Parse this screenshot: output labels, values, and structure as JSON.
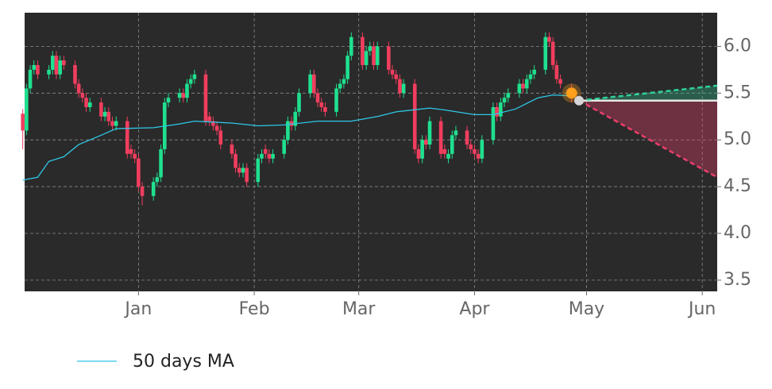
{
  "chart_data": {
    "type": "candlestick",
    "xlim": [
      0.5,
      186
    ],
    "ylim": [
      3.38,
      6.36
    ],
    "xticks": [
      {
        "value": 31,
        "label": "Jan"
      },
      {
        "value": 62,
        "label": "Feb"
      },
      {
        "value": 90,
        "label": "Mar"
      },
      {
        "value": 121,
        "label": "Apr"
      },
      {
        "value": 151,
        "label": "May"
      },
      {
        "value": 182,
        "label": "Jun"
      }
    ],
    "yticks": [
      3.5,
      {
        "value": 4,
        "label": "4.0"
      },
      4.5,
      {
        "value": 5,
        "label": "5.0"
      },
      5.5,
      {
        "value": 6,
        "label": "6.0"
      }
    ],
    "grid": true,
    "candles": {
      "up_color": "#1fe08f",
      "down_color": "#f03e5e",
      "x": [
        0,
        1,
        2,
        3,
        4,
        7,
        8,
        9,
        10,
        11,
        14,
        15,
        16,
        17,
        18,
        21,
        22,
        23,
        24,
        25,
        28,
        29,
        30,
        31,
        32,
        35,
        36,
        37,
        38,
        39,
        42,
        43,
        44,
        45,
        46,
        49,
        50,
        51,
        52,
        53,
        56,
        57,
        58,
        59,
        60,
        63,
        64,
        65,
        66,
        67,
        70,
        71,
        72,
        73,
        74,
        77,
        78,
        79,
        80,
        81,
        84,
        85,
        86,
        87,
        88,
        91,
        92,
        93,
        94,
        95,
        98,
        99,
        100,
        101,
        102,
        105,
        106,
        107,
        108,
        109,
        112,
        113,
        114,
        115,
        116,
        119,
        120,
        121,
        122,
        123,
        126,
        127,
        128,
        129,
        130,
        133,
        134,
        135,
        136,
        137,
        140,
        141,
        142,
        143,
        144,
        147
      ],
      "open": [
        5.28,
        5.1,
        5.55,
        5.75,
        5.8,
        5.7,
        5.75,
        5.9,
        5.7,
        5.85,
        5.8,
        5.6,
        5.5,
        5.45,
        5.35,
        5.4,
        5.25,
        5.3,
        5.2,
        5.15,
        5.2,
        4.9,
        4.85,
        4.8,
        4.5,
        4.4,
        4.55,
        4.6,
        4.9,
        5.4,
        5.45,
        5.5,
        5.45,
        5.6,
        5.65,
        5.7,
        5.25,
        5.2,
        5.15,
        5.1,
        4.95,
        4.85,
        4.7,
        4.65,
        4.7,
        4.55,
        4.8,
        4.9,
        4.85,
        4.8,
        4.85,
        5.0,
        5.2,
        5.15,
        5.3,
        5.5,
        5.7,
        5.5,
        5.4,
        5.35,
        5.3,
        5.55,
        5.6,
        5.65,
        5.9,
        6.1,
        5.8,
        5.95,
        6.0,
        5.8,
        6.0,
        5.75,
        5.7,
        5.65,
        5.5,
        5.6,
        4.9,
        4.8,
        5.0,
        4.95,
        5.2,
        4.9,
        4.8,
        4.85,
        5.05,
        5.1,
        4.95,
        4.9,
        4.85,
        4.8,
        5.0,
        5.35,
        5.25,
        5.4,
        5.45,
        5.5,
        5.6,
        5.55,
        5.65,
        5.7,
        5.75,
        6.1,
        6.05,
        5.8,
        5.65,
        5.55
      ],
      "high": [
        5.33,
        5.6,
        5.8,
        5.85,
        5.85,
        5.8,
        5.95,
        5.95,
        5.9,
        5.9,
        5.85,
        5.65,
        5.55,
        5.5,
        5.45,
        5.45,
        5.35,
        5.35,
        5.25,
        5.25,
        5.25,
        4.95,
        4.9,
        4.85,
        4.55,
        4.6,
        4.65,
        4.95,
        5.45,
        5.5,
        5.55,
        5.55,
        5.65,
        5.7,
        5.75,
        5.75,
        5.3,
        5.25,
        5.2,
        5.15,
        5.0,
        4.9,
        4.75,
        4.75,
        4.75,
        4.85,
        4.9,
        4.95,
        4.9,
        4.9,
        5.05,
        5.25,
        5.25,
        5.35,
        5.55,
        5.75,
        5.75,
        5.55,
        5.45,
        5.4,
        5.6,
        5.65,
        5.7,
        5.95,
        6.15,
        6.15,
        6.0,
        6.05,
        6.05,
        6.05,
        6.05,
        5.8,
        5.75,
        5.7,
        5.65,
        5.65,
        4.95,
        5.05,
        5.05,
        5.25,
        5.25,
        4.95,
        4.9,
        5.1,
        5.15,
        5.15,
        5.0,
        4.95,
        4.9,
        5.05,
        5.4,
        5.4,
        5.45,
        5.5,
        5.55,
        5.65,
        5.65,
        5.7,
        5.75,
        5.8,
        6.15,
        6.15,
        6.1,
        5.85,
        5.7,
        5.6
      ],
      "low": [
        4.9,
        5.05,
        5.5,
        5.7,
        5.65,
        5.65,
        5.7,
        5.65,
        5.65,
        5.75,
        5.55,
        5.45,
        5.4,
        5.3,
        5.3,
        5.2,
        5.2,
        5.15,
        5.1,
        5.1,
        4.8,
        4.8,
        4.75,
        4.45,
        4.3,
        4.35,
        4.5,
        4.55,
        4.85,
        5.35,
        5.4,
        5.4,
        5.4,
        5.55,
        5.6,
        5.15,
        5.15,
        5.1,
        5.05,
        4.9,
        4.8,
        4.65,
        4.6,
        4.6,
        4.5,
        4.5,
        4.75,
        4.8,
        4.75,
        4.75,
        4.8,
        4.95,
        5.1,
        5.1,
        5.25,
        5.45,
        5.45,
        5.35,
        5.3,
        5.25,
        5.25,
        5.5,
        5.55,
        5.6,
        5.85,
        5.75,
        5.75,
        5.9,
        5.75,
        5.75,
        5.7,
        5.65,
        5.6,
        5.45,
        5.45,
        4.85,
        4.75,
        4.75,
        4.9,
        4.9,
        4.8,
        4.8,
        4.75,
        4.8,
        5.0,
        4.9,
        4.85,
        4.8,
        4.75,
        4.75,
        4.95,
        5.2,
        5.2,
        5.35,
        5.4,
        5.45,
        5.5,
        5.5,
        5.6,
        5.65,
        5.7,
        6.0,
        5.75,
        5.6,
        5.55,
        5.4
      ],
      "close": [
        5.1,
        5.55,
        5.75,
        5.8,
        5.7,
        5.75,
        5.9,
        5.7,
        5.85,
        5.8,
        5.6,
        5.5,
        5.45,
        5.35,
        5.4,
        5.25,
        5.3,
        5.2,
        5.15,
        5.2,
        4.85,
        4.85,
        4.8,
        4.5,
        4.4,
        4.55,
        4.6,
        4.9,
        5.4,
        5.45,
        5.5,
        5.45,
        5.6,
        5.65,
        5.7,
        5.2,
        5.2,
        5.15,
        5.1,
        4.95,
        4.85,
        4.7,
        4.65,
        4.7,
        4.55,
        4.8,
        4.85,
        4.85,
        4.8,
        4.85,
        5.0,
        5.2,
        5.15,
        5.3,
        5.5,
        5.7,
        5.5,
        5.4,
        5.35,
        5.3,
        5.55,
        5.6,
        5.65,
        5.9,
        6.1,
        5.8,
        5.95,
        6.0,
        5.8,
        6.0,
        5.75,
        5.7,
        5.65,
        5.5,
        5.6,
        4.9,
        4.8,
        5.0,
        4.95,
        5.2,
        4.85,
        4.85,
        4.85,
        5.05,
        5.1,
        4.95,
        4.9,
        4.85,
        4.8,
        5.0,
        5.35,
        5.25,
        5.4,
        5.45,
        5.5,
        5.6,
        5.55,
        5.65,
        5.7,
        5.75,
        6.1,
        6.05,
        5.8,
        5.65,
        5.6,
        5.48
      ]
    },
    "series": [
      {
        "name": "50 days MA",
        "color": "#2ec8e6",
        "x": [
          0,
          4,
          7,
          11,
          15,
          21,
          25,
          35,
          42,
          46,
          56,
          63,
          70,
          79,
          88,
          95,
          100,
          109,
          113,
          121,
          126,
          132,
          138,
          142,
          147
        ],
        "values": [
          4.57,
          4.6,
          4.77,
          4.82,
          4.95,
          5.05,
          5.12,
          5.13,
          5.17,
          5.2,
          5.18,
          5.15,
          5.16,
          5.2,
          5.2,
          5.25,
          5.3,
          5.34,
          5.32,
          5.27,
          5.27,
          5.33,
          5.45,
          5.48,
          5.47
        ]
      }
    ],
    "forecast": {
      "x": [
        149,
        186
      ],
      "mid": [
        5.42,
        5.42
      ],
      "upper": [
        5.42,
        5.58
      ],
      "lower": [
        5.42,
        4.6
      ],
      "mid_color": "#e6e6e6",
      "upper_color": "#2ed19a",
      "lower_color": "#ec3f6c"
    },
    "markers": [
      {
        "x": 147,
        "y": 5.5,
        "color": "#ff9f1a"
      },
      {
        "x": 149,
        "y": 5.42,
        "color": "#d6d6d6"
      }
    ]
  }
}
